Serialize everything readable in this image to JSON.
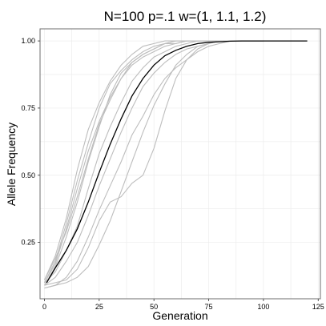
{
  "chart_data": {
    "type": "line",
    "title": "N=100   p=.1   w=(1, 1.1, 1.2)",
    "xlabel": "Generation",
    "ylabel": "Allele Frequency",
    "xlim": [
      -2,
      126
    ],
    "ylim": [
      0.04,
      1.045
    ],
    "x_ticks": [
      {
        "value": 0,
        "label": "0"
      },
      {
        "value": 25,
        "label": "25"
      },
      {
        "value": 50,
        "label": "50"
      },
      {
        "value": 75,
        "label": "75"
      },
      {
        "value": 100,
        "label": "100"
      },
      {
        "value": 125,
        "label": "125"
      }
    ],
    "y_ticks": [
      {
        "value": 0.25,
        "label": "0.25"
      },
      {
        "value": 0.5,
        "label": "0.50"
      },
      {
        "value": 0.75,
        "label": "0.75"
      },
      {
        "value": 1.0,
        "label": "1.00"
      }
    ],
    "grid": true,
    "colors": {
      "simulation": "#bdbdbd",
      "expected": "#000000",
      "grid": "#ececec",
      "frame": "#6e6e6e"
    },
    "expected": {
      "x": [
        1,
        5,
        10,
        15,
        20,
        25,
        30,
        35,
        40,
        45,
        50,
        55,
        60,
        65,
        70,
        75,
        80,
        85,
        90,
        95,
        100,
        105,
        110,
        115,
        120
      ],
      "y": [
        0.1,
        0.155,
        0.22,
        0.3,
        0.4,
        0.51,
        0.615,
        0.71,
        0.795,
        0.86,
        0.91,
        0.945,
        0.965,
        0.98,
        0.99,
        0.995,
        0.997,
        0.999,
        1.0,
        1.0,
        1.0,
        1.0,
        1.0,
        1.0,
        1.0
      ]
    },
    "simulations": [
      {
        "x": [
          0,
          5,
          10,
          15,
          20,
          25,
          30,
          35,
          40,
          45,
          50,
          55,
          60,
          65,
          70,
          75,
          80,
          85,
          90,
          95,
          100,
          105,
          110,
          115,
          120
        ],
        "y": [
          0.1,
          0.18,
          0.32,
          0.48,
          0.62,
          0.75,
          0.84,
          0.89,
          0.93,
          0.96,
          0.98,
          0.99,
          1.0,
          1.0,
          1.0,
          1.0,
          1.0,
          1.0,
          1.0,
          1.0,
          1.0,
          1.0,
          1.0,
          1.0,
          1.0
        ]
      },
      {
        "x": [
          0,
          5,
          10,
          15,
          20,
          25,
          30,
          35,
          40,
          45,
          50,
          55,
          60,
          65,
          70,
          75,
          80,
          85,
          90,
          95,
          100
        ],
        "y": [
          0.09,
          0.16,
          0.27,
          0.4,
          0.55,
          0.68,
          0.8,
          0.88,
          0.92,
          0.95,
          0.97,
          0.99,
          0.99,
          1.0,
          1.0,
          1.0,
          1.0,
          1.0,
          1.0,
          1.0,
          1.0
        ]
      },
      {
        "x": [
          0,
          5,
          10,
          15,
          20,
          25,
          30,
          35,
          40,
          45,
          50,
          55,
          60,
          65,
          70,
          75
        ],
        "y": [
          0.11,
          0.2,
          0.34,
          0.52,
          0.67,
          0.77,
          0.85,
          0.91,
          0.95,
          0.98,
          0.99,
          1.0,
          1.0,
          1.0,
          1.0,
          1.0
        ]
      },
      {
        "x": [
          0,
          5,
          10,
          15,
          20,
          25,
          30,
          35,
          40,
          45,
          50,
          55,
          60,
          65,
          70,
          75,
          80,
          85,
          90
        ],
        "y": [
          0.1,
          0.14,
          0.22,
          0.31,
          0.45,
          0.58,
          0.68,
          0.77,
          0.85,
          0.9,
          0.94,
          0.96,
          0.98,
          0.99,
          1.0,
          1.0,
          1.0,
          1.0,
          1.0
        ]
      },
      {
        "x": [
          0,
          5,
          10,
          15,
          20,
          25,
          30,
          35,
          40,
          45,
          50,
          55,
          60,
          65,
          70,
          75,
          80,
          85,
          90,
          95,
          100
        ],
        "y": [
          0.08,
          0.09,
          0.12,
          0.18,
          0.27,
          0.37,
          0.46,
          0.55,
          0.65,
          0.72,
          0.8,
          0.86,
          0.9,
          0.93,
          0.96,
          0.98,
          0.99,
          1.0,
          1.0,
          1.0,
          1.0
        ]
      },
      {
        "x": [
          0,
          5,
          10,
          15,
          20,
          25,
          30,
          35,
          40,
          45,
          50,
          55,
          60,
          65,
          70,
          75,
          80,
          85,
          90,
          95,
          100
        ],
        "y": [
          0.09,
          0.1,
          0.11,
          0.15,
          0.23,
          0.33,
          0.4,
          0.42,
          0.47,
          0.5,
          0.6,
          0.74,
          0.86,
          0.93,
          0.97,
          0.99,
          1.0,
          1.0,
          1.0,
          1.0,
          1.0
        ]
      },
      {
        "x": [
          0,
          5,
          10,
          15,
          20,
          25,
          30,
          35,
          40,
          45,
          50,
          55,
          60,
          65,
          70,
          75
        ],
        "y": [
          0.1,
          0.17,
          0.3,
          0.45,
          0.59,
          0.7,
          0.79,
          0.86,
          0.92,
          0.95,
          0.97,
          0.99,
          1.0,
          1.0,
          1.0,
          1.0
        ]
      },
      {
        "x": [
          0,
          5,
          10,
          15,
          20,
          25,
          30,
          35,
          40,
          45,
          50,
          55,
          60,
          65,
          70,
          75,
          80,
          85,
          90,
          95,
          100
        ],
        "y": [
          0.09,
          0.12,
          0.18,
          0.25,
          0.35,
          0.46,
          0.56,
          0.66,
          0.75,
          0.83,
          0.88,
          0.92,
          0.95,
          0.97,
          0.98,
          0.99,
          1.0,
          1.0,
          1.0,
          1.0,
          1.0
        ]
      },
      {
        "x": [
          0,
          5,
          10,
          15,
          20,
          25,
          30,
          35,
          40,
          45,
          50,
          55,
          60,
          65,
          70,
          75,
          80,
          85,
          90,
          95,
          100
        ],
        "y": [
          0.08,
          0.09,
          0.1,
          0.12,
          0.16,
          0.24,
          0.33,
          0.44,
          0.55,
          0.66,
          0.76,
          0.84,
          0.91,
          0.95,
          0.98,
          0.99,
          1.0,
          1.0,
          1.0,
          1.0,
          1.0
        ]
      },
      {
        "x": [
          0,
          5,
          10,
          15,
          20,
          25,
          30,
          35,
          40,
          45,
          50,
          55,
          60,
          65,
          70,
          75,
          80,
          85,
          90
        ],
        "y": [
          0.11,
          0.19,
          0.29,
          0.42,
          0.56,
          0.69,
          0.78,
          0.86,
          0.91,
          0.94,
          0.96,
          0.98,
          0.99,
          1.0,
          1.0,
          1.0,
          1.0,
          1.0,
          1.0
        ]
      }
    ]
  }
}
